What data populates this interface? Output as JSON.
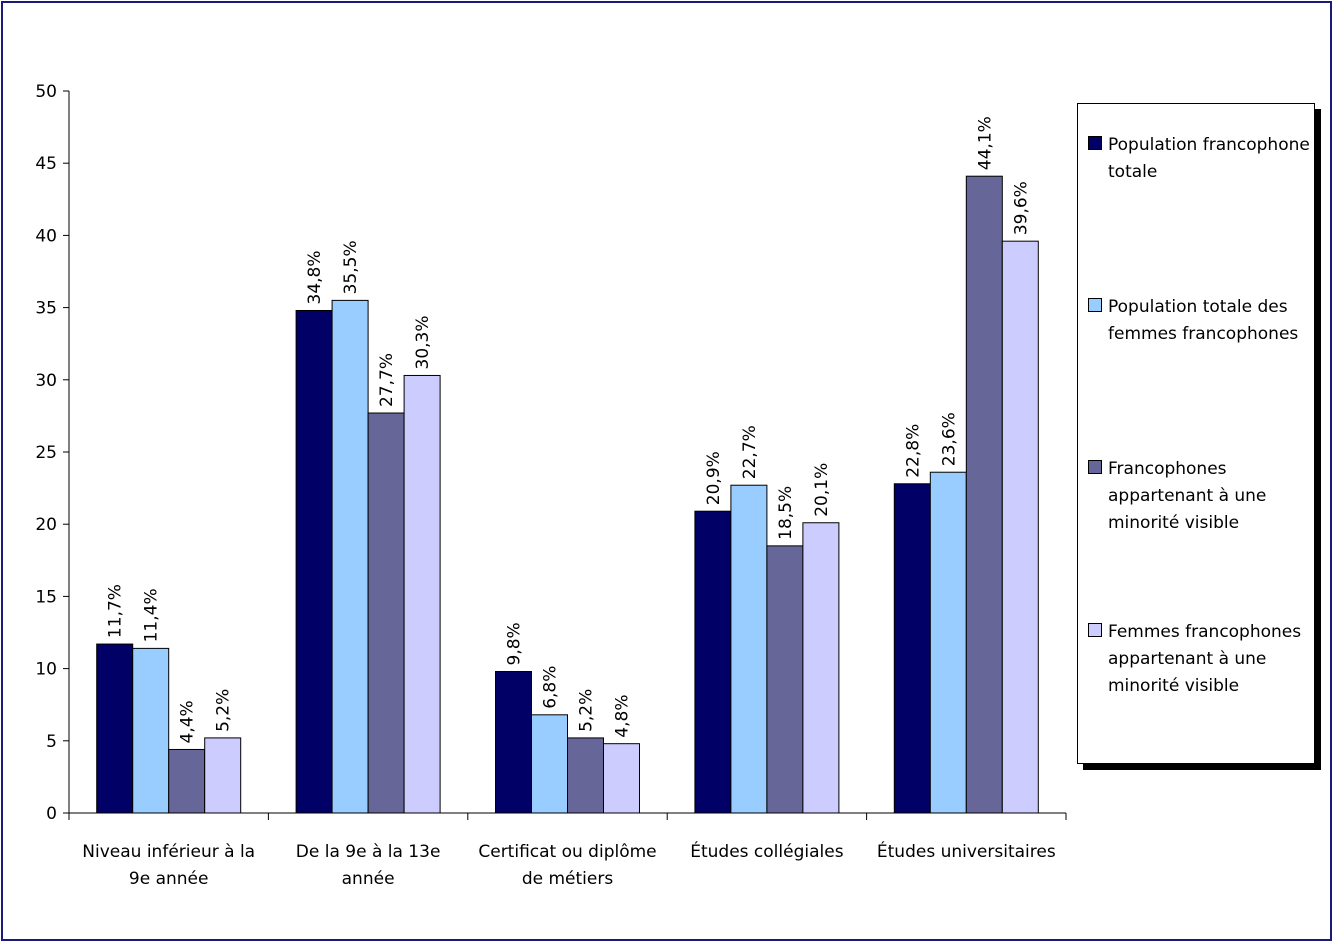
{
  "chart_data": {
    "type": "bar",
    "title": "",
    "xlabel": "",
    "ylabel": "",
    "ylim": [
      0,
      50
    ],
    "yticks": [
      0,
      5,
      10,
      15,
      20,
      25,
      30,
      35,
      40,
      45,
      50
    ],
    "grid": false,
    "legend_position": "right",
    "categories": [
      "Niveau inférieur à la 9e année",
      "De la 9e à la 13e année",
      "Certificat ou diplôme de métiers",
      "Études collégiales",
      "Études universitaires"
    ],
    "series": [
      {
        "name": "Population francophone totale",
        "color": "#000066",
        "values": [
          11.7,
          34.8,
          9.8,
          20.9,
          22.8
        ],
        "labels": [
          "11,7%",
          "34,8%",
          "9,8%",
          "20,9%",
          "22,8%"
        ]
      },
      {
        "name": "Population totale des femmes francophones",
        "color": "#99ccff",
        "values": [
          11.4,
          35.5,
          6.8,
          22.7,
          23.6
        ],
        "labels": [
          "11,4%",
          "35,5%",
          "6,8%",
          "22,7%",
          "23,6%"
        ]
      },
      {
        "name": "Francophones appartenant à une minorité visible",
        "color": "#666699",
        "values": [
          4.4,
          27.7,
          5.2,
          18.5,
          44.1
        ],
        "labels": [
          "4,4%",
          "27,7%",
          "5,2%",
          "18,5%",
          "44,1%"
        ]
      },
      {
        "name": "Femmes francophones appartenant à une minorité visible",
        "color": "#ccccff",
        "values": [
          5.2,
          30.3,
          4.8,
          20.1,
          39.6
        ],
        "labels": [
          "5,2%",
          "30,3%",
          "4,8%",
          "20,1%",
          "39,6%"
        ]
      }
    ]
  }
}
